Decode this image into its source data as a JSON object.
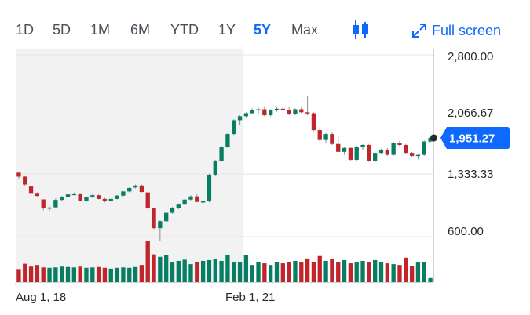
{
  "toolbar": {
    "ranges": [
      "1D",
      "5D",
      "1M",
      "6M",
      "YTD",
      "1Y",
      "5Y",
      "Max"
    ],
    "active_range": "5Y",
    "chart_type_icon": "candlestick-icon",
    "fullscreen_label": "Full screen",
    "fullscreen_icon": "expand-arrows-icon",
    "accent_color": "#0f69ff"
  },
  "chart_data": {
    "type": "candlestick",
    "title": "",
    "ylim": [
      0,
      2800
    ],
    "y_ticks": [
      "2,800.00",
      "2,066.67",
      "1,333.33",
      "600.00"
    ],
    "x_ticks": [
      "Aug 1, 18",
      "Feb 1, 21"
    ],
    "current_price_label": "1,951.27",
    "current_price": 1951.27,
    "up_color": "#077e62",
    "down_color": "#c0252c",
    "shaded_region_end_index": 37,
    "candles": [
      [
        1600,
        1610,
        1540,
        1560,
        "d"
      ],
      [
        1560,
        1565,
        1470,
        1480,
        "d"
      ],
      [
        1460,
        1465,
        1380,
        1395,
        "d"
      ],
      [
        1395,
        1400,
        1350,
        1365,
        "d"
      ],
      [
        1330,
        1330,
        1220,
        1240,
        "d"
      ],
      [
        1240,
        1260,
        1215,
        1248,
        "u"
      ],
      [
        1250,
        1340,
        1245,
        1325,
        "u"
      ],
      [
        1325,
        1365,
        1310,
        1350,
        "u"
      ],
      [
        1355,
        1385,
        1345,
        1380,
        "u"
      ],
      [
        1380,
        1400,
        1370,
        1385,
        "u"
      ],
      [
        1385,
        1395,
        1310,
        1315,
        "d"
      ],
      [
        1315,
        1360,
        1305,
        1350,
        "u"
      ],
      [
        1355,
        1385,
        1345,
        1372,
        "u"
      ],
      [
        1372,
        1380,
        1330,
        1335,
        "d"
      ],
      [
        1335,
        1345,
        1300,
        1310,
        "d"
      ],
      [
        1310,
        1340,
        1300,
        1335,
        "u"
      ],
      [
        1335,
        1375,
        1330,
        1368,
        "u"
      ],
      [
        1368,
        1415,
        1360,
        1410,
        "u"
      ],
      [
        1410,
        1450,
        1400,
        1445,
        "u"
      ],
      [
        1450,
        1480,
        1440,
        1470,
        "u"
      ],
      [
        1470,
        1480,
        1400,
        1405,
        "d"
      ],
      [
        1400,
        1410,
        1230,
        1240,
        "d"
      ],
      [
        1240,
        1245,
        1030,
        1040,
        "d"
      ],
      [
        1040,
        1120,
        910,
        1110,
        "u"
      ],
      [
        1110,
        1200,
        1100,
        1195,
        "u"
      ],
      [
        1195,
        1255,
        1185,
        1245,
        "u"
      ],
      [
        1245,
        1290,
        1230,
        1285,
        "u"
      ],
      [
        1285,
        1335,
        1275,
        1328,
        "u"
      ],
      [
        1328,
        1370,
        1320,
        1360,
        "u"
      ],
      [
        1360,
        1380,
        1300,
        1305,
        "d"
      ],
      [
        1305,
        1320,
        1290,
        1310,
        "u"
      ],
      [
        1310,
        1590,
        1300,
        1580,
        "u"
      ],
      [
        1580,
        1730,
        1570,
        1720,
        "u"
      ],
      [
        1720,
        1870,
        1710,
        1860,
        "u"
      ],
      [
        1860,
        2000,
        1850,
        1990,
        "u"
      ],
      [
        1990,
        2140,
        1980,
        2130,
        "u"
      ],
      [
        2130,
        2180,
        2080,
        2170,
        "u"
      ],
      [
        2170,
        2210,
        2150,
        2200,
        "u"
      ],
      [
        2200,
        2250,
        2190,
        2230,
        "u"
      ],
      [
        2230,
        2260,
        2200,
        2240,
        "u"
      ],
      [
        2240,
        2270,
        2170,
        2180,
        "d"
      ],
      [
        2180,
        2240,
        2170,
        2230,
        "u"
      ],
      [
        2230,
        2260,
        2215,
        2245,
        "u"
      ],
      [
        2245,
        2260,
        2225,
        2235,
        "d"
      ],
      [
        2235,
        2260,
        2180,
        2190,
        "d"
      ],
      [
        2190,
        2250,
        2180,
        2240,
        "u"
      ],
      [
        2240,
        2270,
        2200,
        2210,
        "d"
      ],
      [
        2210,
        2380,
        2180,
        2200,
        "d"
      ],
      [
        2200,
        2210,
        2020,
        2030,
        "d"
      ],
      [
        2030,
        2060,
        1910,
        1930,
        "d"
      ],
      [
        1930,
        2000,
        1900,
        1990,
        "u"
      ],
      [
        1990,
        2010,
        1880,
        1890,
        "d"
      ],
      [
        1890,
        1980,
        1800,
        1810,
        "d"
      ],
      [
        1810,
        1860,
        1780,
        1850,
        "u"
      ],
      [
        1850,
        1860,
        1720,
        1730,
        "d"
      ],
      [
        1730,
        1870,
        1720,
        1860,
        "u"
      ],
      [
        1860,
        1890,
        1830,
        1880,
        "u"
      ],
      [
        1880,
        1890,
        1710,
        1720,
        "d"
      ],
      [
        1720,
        1810,
        1700,
        1800,
        "u"
      ],
      [
        1800,
        1840,
        1790,
        1830,
        "u"
      ],
      [
        1830,
        1850,
        1770,
        1780,
        "d"
      ],
      [
        1780,
        1910,
        1770,
        1900,
        "u"
      ],
      [
        1900,
        1920,
        1870,
        1880,
        "d"
      ],
      [
        1880,
        1890,
        1790,
        1800,
        "d"
      ],
      [
        1800,
        1810,
        1760,
        1770,
        "d"
      ],
      [
        1770,
        1790,
        1735,
        1780,
        "u"
      ],
      [
        1780,
        1925,
        1770,
        1915,
        "u"
      ],
      [
        1915,
        1955,
        1900,
        1951.27,
        "u"
      ]
    ],
    "volumes": [
      0.32,
      0.45,
      0.38,
      0.42,
      0.36,
      0.35,
      0.36,
      0.38,
      0.37,
      0.36,
      0.38,
      0.35,
      0.36,
      0.37,
      0.35,
      0.33,
      0.35,
      0.36,
      0.35,
      0.37,
      0.42,
      1.0,
      0.68,
      0.62,
      0.66,
      0.48,
      0.52,
      0.55,
      0.44,
      0.5,
      0.52,
      0.54,
      0.56,
      0.52,
      0.66,
      0.5,
      0.48,
      0.66,
      0.42,
      0.5,
      0.46,
      0.42,
      0.48,
      0.46,
      0.5,
      0.52,
      0.48,
      0.58,
      0.5,
      0.64,
      0.52,
      0.56,
      0.5,
      0.54,
      0.46,
      0.5,
      0.52,
      0.5,
      0.54,
      0.48,
      0.46,
      0.44,
      0.42,
      0.6,
      0.4,
      0.48,
      0.48,
      0.1
    ]
  }
}
